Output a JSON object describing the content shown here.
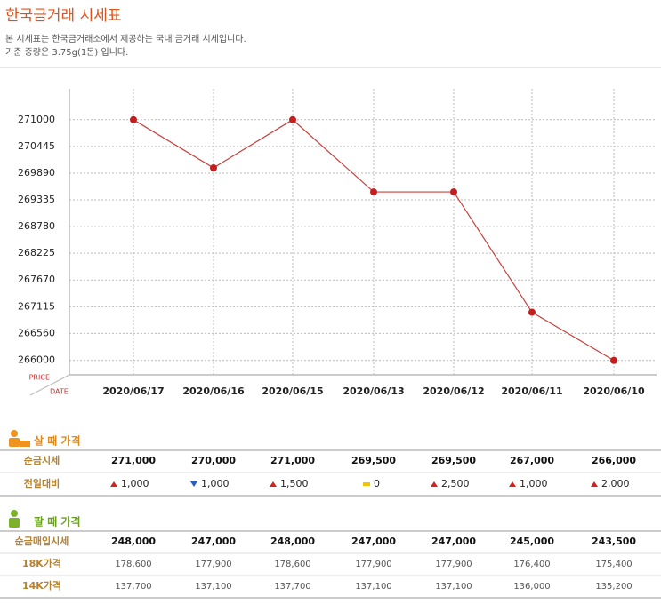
{
  "header": {
    "title": "한국금거래 시세표",
    "description": [
      "본 시세표는 한국금거래소에서 제공하는 국내 금거래 시세입니다.",
      "기준 중량은 3.75g(1돈) 입니다."
    ]
  },
  "chart_data": {
    "type": "line",
    "y_label": "PRICE",
    "x_label": "DATE",
    "categories": [
      "2020/06/17",
      "2020/06/16",
      "2020/06/15",
      "2020/06/13",
      "2020/06/12",
      "2020/06/11",
      "2020/06/10"
    ],
    "values": [
      271000,
      270000,
      271000,
      269500,
      269500,
      267000,
      266000
    ],
    "color": "#c8403c",
    "point_color": "#c41e1e",
    "ylim": [
      265700,
      271550
    ],
    "yticks": [
      266000,
      266560,
      267115,
      267670,
      268225,
      268780,
      269335,
      269890,
      270445,
      271000
    ],
    "grid": true
  },
  "buy_table": {
    "title": "살 때 가격",
    "rows": [
      {
        "label": "순금시세",
        "values": [
          "271,000",
          "270,000",
          "271,000",
          "269,500",
          "269,500",
          "267,000",
          "266,000"
        ]
      },
      {
        "label": "전일대비",
        "values": [
          "1,000",
          "1,000",
          "1,500",
          "0",
          "2,500",
          "1,000",
          "2,000"
        ],
        "directions": [
          "up",
          "down",
          "up",
          "flat",
          "up",
          "up",
          "up"
        ]
      }
    ]
  },
  "sell_table": {
    "title": "팔 때 가격",
    "rows": [
      {
        "label": "순금매입시세",
        "values": [
          "248,000",
          "247,000",
          "248,000",
          "247,000",
          "247,000",
          "245,000",
          "243,500"
        ]
      },
      {
        "label": "18K가격",
        "values": [
          "178,600",
          "177,900",
          "178,600",
          "177,900",
          "177,900",
          "176,400",
          "175,400"
        ]
      },
      {
        "label": "14K가격",
        "values": [
          "137,700",
          "137,100",
          "137,700",
          "137,100",
          "137,100",
          "136,000",
          "135,200"
        ]
      }
    ]
  }
}
